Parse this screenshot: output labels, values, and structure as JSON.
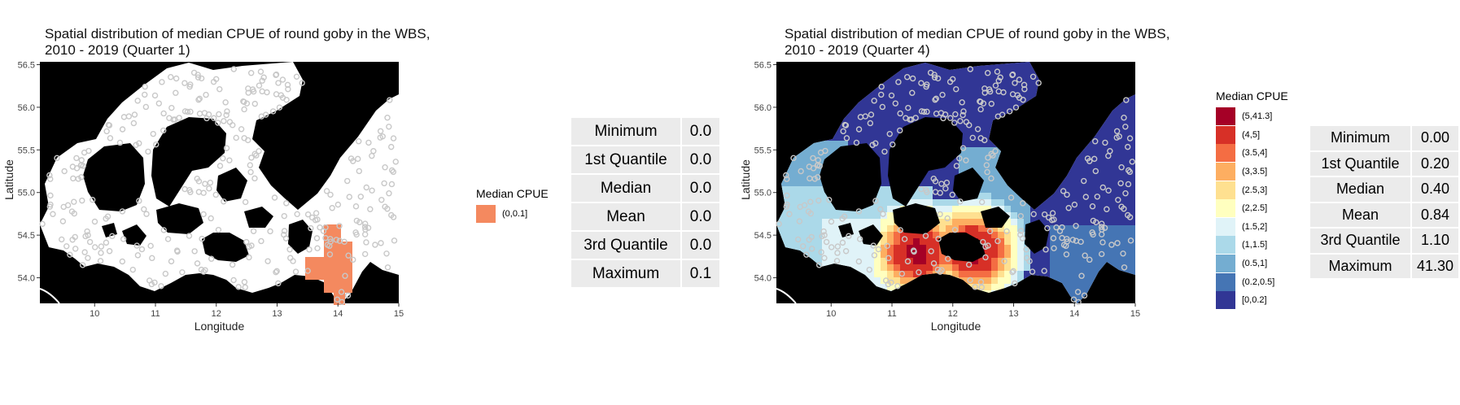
{
  "panels": [
    {
      "title_line1": "Spatial distribution of median CPUE of round goby in the WBS,",
      "title_line2": "2010 - 2019 (Quarter 1)",
      "xlabel": "Longitude",
      "ylabel": "Latitude",
      "legend_title": "Median CPUE",
      "legend": [
        {
          "label": "(0,0.1]",
          "color": "#f4895f"
        }
      ],
      "stats": [
        {
          "name": "Minimum",
          "value": "0.0"
        },
        {
          "name": "1st Quantile",
          "value": "0.0"
        },
        {
          "name": "Median",
          "value": "0.0"
        },
        {
          "name": "Mean",
          "value": "0.0"
        },
        {
          "name": "3rd Quantile",
          "value": "0.0"
        },
        {
          "name": "Maximum",
          "value": "0.1"
        }
      ]
    },
    {
      "title_line1": "Spatial distribution of median CPUE of round goby in the WBS,",
      "title_line2": "2010 - 2019 (Quarter 4)",
      "xlabel": "Longitude",
      "ylabel": "Latitude",
      "legend_title": "Median CPUE",
      "legend": [
        {
          "label": "(5,41.3]",
          "color": "#a50026"
        },
        {
          "label": "(4,5]",
          "color": "#d73027"
        },
        {
          "label": "(3.5,4]",
          "color": "#f46d43"
        },
        {
          "label": "(3,3.5]",
          "color": "#fdae61"
        },
        {
          "label": "(2.5,3]",
          "color": "#fee090"
        },
        {
          "label": "(2,2.5]",
          "color": "#ffffbf"
        },
        {
          "label": "(1.5,2]",
          "color": "#e0f3f8"
        },
        {
          "label": "(1,1.5]",
          "color": "#abd9e9"
        },
        {
          "label": "(0.5,1]",
          "color": "#74add1"
        },
        {
          "label": "(0.2,0.5]",
          "color": "#4575b4"
        },
        {
          "label": "[0,0.2]",
          "color": "#313695"
        }
      ],
      "stats": [
        {
          "name": "Minimum",
          "value": "0.00"
        },
        {
          "name": "1st Quantile",
          "value": "0.20"
        },
        {
          "name": "Median",
          "value": "0.40"
        },
        {
          "name": "Mean",
          "value": "0.84"
        },
        {
          "name": "3rd Quantile",
          "value": "1.10"
        },
        {
          "name": "Maximum",
          "value": "41.30"
        }
      ]
    }
  ],
  "map_axes": {
    "x_ticks": [
      10,
      11,
      12,
      13,
      14,
      15
    ],
    "y_ticks": [
      "54.0",
      "54.5",
      "55.0",
      "55.5",
      "56.0",
      "56.5"
    ],
    "xlim": [
      9.1,
      15.0
    ],
    "ylim": [
      53.7,
      56.6
    ]
  },
  "colors": {
    "land": "#000000",
    "water": "#ffffff",
    "point": "#c8c8c8"
  }
}
